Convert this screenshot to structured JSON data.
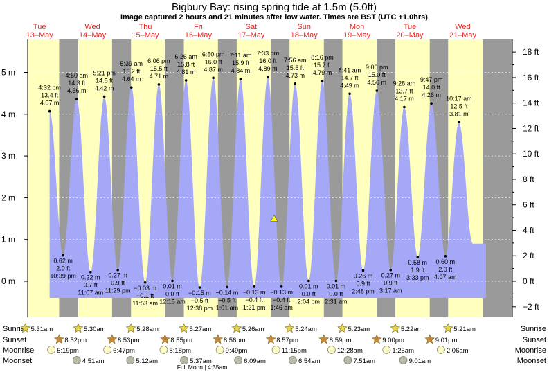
{
  "chart_data": {
    "type": "area",
    "title": "Bigbury Bay: rising  spring tide at 1.5m (5.0ft)",
    "subtitle": "Image captured 2 hours and 21 minutes after low water. Times are BST (UTC +1.0hrs)",
    "y_left": {
      "unit": "m",
      "ylim": [
        -0.65,
        5.75
      ],
      "ticks": [
        0,
        1,
        2,
        3,
        4,
        5
      ],
      "tick_labels": [
        "0 m",
        "1 m",
        "2 m",
        "3 m",
        "4 m",
        "5 m"
      ]
    },
    "y_right": {
      "unit": "ft",
      "ticks": [
        -2,
        0,
        2,
        4,
        6,
        8,
        10,
        12,
        14,
        16,
        18
      ],
      "tick_labels": [
        "−2 ft",
        "0 ft",
        "2 ft",
        "4 ft",
        "6 ft",
        "8 ft",
        "10 ft",
        "12 ft",
        "14 ft",
        "16 ft",
        "18 ft"
      ]
    },
    "days": [
      {
        "day": "Tue",
        "date": "13–May"
      },
      {
        "day": "Wed",
        "date": "14–May"
      },
      {
        "day": "Thu",
        "date": "15–May"
      },
      {
        "day": "Fri",
        "date": "16–May"
      },
      {
        "day": "Sat",
        "date": "17–May"
      },
      {
        "day": "Sun",
        "date": "18–May"
      },
      {
        "day": "Mon",
        "date": "19–May"
      },
      {
        "day": "Tue",
        "date": "20–May"
      },
      {
        "day": "Wed",
        "date": "21–May"
      }
    ],
    "tides": [
      {
        "type": "high",
        "day": 0,
        "time": "4:32 pm",
        "ft": "13.4 ft",
        "m": "4.07 m",
        "height": 4.07,
        "hour": 16.53
      },
      {
        "type": "low",
        "day": 0,
        "time": "10:39 pm",
        "ft": "2.0 ft",
        "m": "0.62 m",
        "height": 0.62,
        "hour": 22.65
      },
      {
        "type": "high",
        "day": 1,
        "time": "4:50 am",
        "ft": "14.3 ft",
        "m": "4.36 m",
        "height": 4.36,
        "hour": 4.83
      },
      {
        "type": "low",
        "day": 1,
        "time": "11:07 am",
        "ft": "0.7 ft",
        "m": "0.22 m",
        "height": 0.22,
        "hour": 11.12
      },
      {
        "type": "high",
        "day": 1,
        "time": "5:21 pm",
        "ft": "14.5 ft",
        "m": "4.42 m",
        "height": 4.42,
        "hour": 17.35
      },
      {
        "type": "low",
        "day": 1,
        "time": "11:29 pm",
        "ft": "0.9 ft",
        "m": "0.27 m",
        "height": 0.27,
        "hour": 23.48
      },
      {
        "type": "high",
        "day": 2,
        "time": "5:39 am",
        "ft": "15.2 ft",
        "m": "4.64 m",
        "height": 4.64,
        "hour": 5.65
      },
      {
        "type": "low",
        "day": 2,
        "time": "11:53 am",
        "ft": "−0.1 ft",
        "m": "−0.03 m",
        "height": -0.03,
        "hour": 11.88
      },
      {
        "type": "high",
        "day": 2,
        "time": "6:06 pm",
        "ft": "15.5 ft",
        "m": "4.71 m",
        "height": 4.71,
        "hour": 18.1
      },
      {
        "type": "low",
        "day": 3,
        "time": "12:15 am",
        "ft": "0.0 ft",
        "m": "0.01 m",
        "height": 0.01,
        "hour": 0.25
      },
      {
        "type": "high",
        "day": 3,
        "time": "6:26 am",
        "ft": "15.8 ft",
        "m": "4.81 m",
        "height": 4.81,
        "hour": 6.43
      },
      {
        "type": "low",
        "day": 3,
        "time": "12:38 pm",
        "ft": "−0.5 ft",
        "m": "−0.15 m",
        "height": -0.15,
        "hour": 12.63
      },
      {
        "type": "high",
        "day": 3,
        "time": "6:50 pm",
        "ft": "16.0 ft",
        "m": "4.87 m",
        "height": 4.87,
        "hour": 18.83
      },
      {
        "type": "low",
        "day": 4,
        "time": "1:01 am",
        "ft": "−0.5 ft",
        "m": "−0.14 m",
        "height": -0.14,
        "hour": 1.02
      },
      {
        "type": "high",
        "day": 4,
        "time": "7:11 am",
        "ft": "15.9 ft",
        "m": "4.84 m",
        "height": 4.84,
        "hour": 7.18
      },
      {
        "type": "low",
        "day": 4,
        "time": "1:21 pm",
        "ft": "−0.4 ft",
        "m": "−0.13 m",
        "height": -0.13,
        "hour": 13.35
      },
      {
        "type": "high",
        "day": 4,
        "time": "7:33 pm",
        "ft": "16.0 ft",
        "m": "4.89 m",
        "height": 4.89,
        "hour": 19.55
      },
      {
        "type": "low",
        "day": 5,
        "time": "1:46 am",
        "ft": "−0.4 ft",
        "m": "−0.13 m",
        "height": -0.13,
        "hour": 1.77
      },
      {
        "type": "high",
        "day": 5,
        "time": "7:56 am",
        "ft": "15.5 ft",
        "m": "4.73 m",
        "height": 4.73,
        "hour": 7.93
      },
      {
        "type": "low",
        "day": 5,
        "time": "2:04 pm",
        "ft": "0.0 ft",
        "m": "0.01 m",
        "height": 0.01,
        "hour": 14.07
      },
      {
        "type": "high",
        "day": 5,
        "time": "8:16 pm",
        "ft": "15.7 ft",
        "m": "4.79 m",
        "height": 4.79,
        "hour": 20.27
      },
      {
        "type": "low",
        "day": 6,
        "time": "2:31 am",
        "ft": "0.0 ft",
        "m": "0.01 m",
        "height": 0.01,
        "hour": 2.52
      },
      {
        "type": "high",
        "day": 6,
        "time": "8:41 am",
        "ft": "14.7 ft",
        "m": "4.49 m",
        "height": 4.49,
        "hour": 8.68
      },
      {
        "type": "low",
        "day": 6,
        "time": "2:48 pm",
        "ft": "0.9 ft",
        "m": "0.26 m",
        "height": 0.26,
        "hour": 14.8
      },
      {
        "type": "high",
        "day": 6,
        "time": "9:00 pm",
        "ft": "15.0 ft",
        "m": "4.56 m",
        "height": 4.56,
        "hour": 21.0
      },
      {
        "type": "low",
        "day": 7,
        "time": "3:17 am",
        "ft": "0.9 ft",
        "m": "0.27 m",
        "height": 0.27,
        "hour": 3.28
      },
      {
        "type": "high",
        "day": 7,
        "time": "9:28 am",
        "ft": "13.7 ft",
        "m": "4.17 m",
        "height": 4.17,
        "hour": 9.47
      },
      {
        "type": "low",
        "day": 7,
        "time": "3:33 pm",
        "ft": "1.9 ft",
        "m": "0.58 m",
        "height": 0.58,
        "hour": 15.55
      },
      {
        "type": "high",
        "day": 7,
        "time": "9:47 pm",
        "ft": "14.0 ft",
        "m": "4.26 m",
        "height": 4.26,
        "hour": 21.78
      },
      {
        "type": "low",
        "day": 8,
        "time": "4:07 am",
        "ft": "2.0 ft",
        "m": "0.60 m",
        "height": 0.6,
        "hour": 4.12
      },
      {
        "type": "high",
        "day": 8,
        "time": "10:17 am",
        "ft": "12.5 ft",
        "m": "3.81 m",
        "height": 3.81,
        "hour": 10.28
      }
    ],
    "current_marker": {
      "height": 1.5
    },
    "sunrise": [
      "5:31am",
      "5:30am",
      "5:28am",
      "5:27am",
      "5:26am",
      "5:24am",
      "5:23am",
      "5:22am",
      "5:21am"
    ],
    "sunset": [
      "8:52pm",
      "8:53pm",
      "8:55pm",
      "8:56pm",
      "8:57pm",
      "8:59pm",
      "9:00pm",
      "9:01pm"
    ],
    "moonrise": [
      {
        "day": 0,
        "time": "5:19pm",
        "hour": 17.32
      },
      {
        "day": 1,
        "time": "6:47pm",
        "hour": 18.78
      },
      {
        "day": 2,
        "time": "8:18pm",
        "hour": 20.3
      },
      {
        "day": 3,
        "time": "9:49pm",
        "hour": 21.82
      },
      {
        "day": 4,
        "time": "11:15pm",
        "hour": 23.25
      },
      {
        "day": 6,
        "time": "12:28am",
        "hour": 0.47
      },
      {
        "day": 7,
        "time": "1:25am",
        "hour": 1.42
      },
      {
        "day": 8,
        "time": "2:06am",
        "hour": 2.1
      }
    ],
    "moonset": [
      {
        "day": 1,
        "time": "4:51am",
        "hour": 4.85
      },
      {
        "day": 2,
        "time": "5:12am",
        "hour": 5.2
      },
      {
        "day": 3,
        "time": "5:37am",
        "hour": 5.62
      },
      {
        "day": 4,
        "time": "6:09am",
        "hour": 6.15
      },
      {
        "day": 5,
        "time": "6:54am",
        "hour": 6.9
      },
      {
        "day": 6,
        "time": "7:51am",
        "hour": 7.85
      },
      {
        "day": 7,
        "time": "9:01am",
        "hour": 9.02
      }
    ],
    "full_moon": "Full Moon | 4:35am",
    "row_labels": {
      "sunrise": "Sunrise",
      "sunset": "Sunset",
      "moonrise": "Moonrise",
      "moonset": "Moonset"
    },
    "colors": {
      "water": "#a4a8f7",
      "day": "#ffffbe",
      "night": "#9a9a9a",
      "day_label": "#e8251f",
      "marker": "#ffff00"
    }
  }
}
